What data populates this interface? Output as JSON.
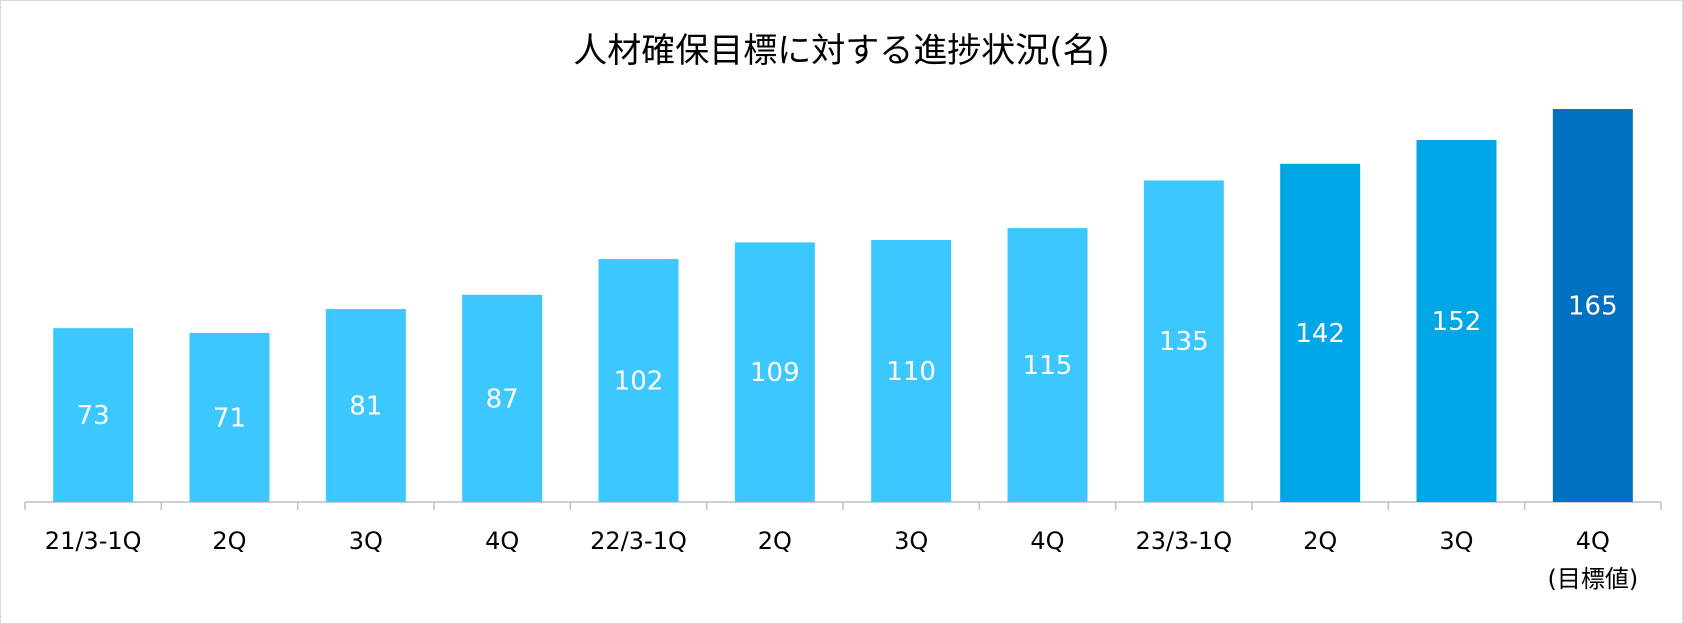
{
  "chart_data": {
    "type": "bar",
    "title": "人材確保目標に対する進捗状況(名)",
    "categories": [
      "21/3-1Q",
      "2Q",
      "3Q",
      "4Q",
      "22/3-1Q",
      "2Q",
      "3Q",
      "4Q",
      "23/3-1Q",
      "2Q",
      "3Q",
      "4Q\n(目標値)"
    ],
    "values": [
      73,
      71,
      81,
      87,
      102,
      109,
      110,
      115,
      135,
      142,
      152,
      165
    ],
    "bar_colors": [
      "#3cc8ff",
      "#3cc8ff",
      "#3cc8ff",
      "#3cc8ff",
      "#3cc8ff",
      "#3cc8ff",
      "#3cc8ff",
      "#3cc8ff",
      "#3cc8ff",
      "#00a7e6",
      "#00a7e6",
      "#0070c0"
    ],
    "data_label_color": "#ffffff",
    "axis_color": "#bfbfbf",
    "ylim": [
      0,
      165
    ],
    "grid": false,
    "legend": "none"
  }
}
